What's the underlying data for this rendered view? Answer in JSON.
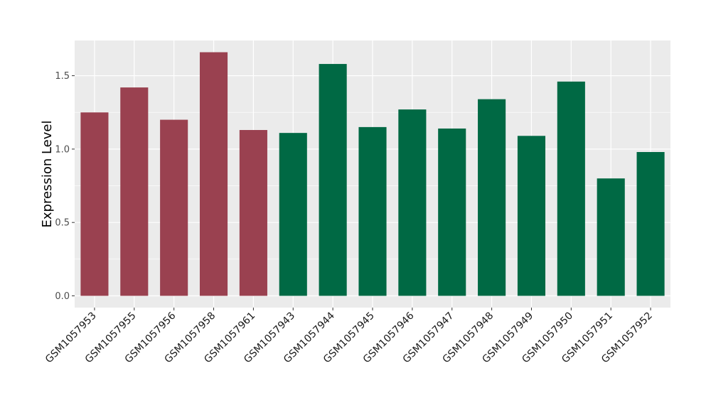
{
  "chart_data": {
    "type": "bar",
    "title": "",
    "xlabel": "",
    "ylabel": "Expression Level",
    "ylim": [
      -0.08,
      1.74
    ],
    "yticks": [
      0.0,
      0.5,
      1.0,
      1.5
    ],
    "ytick_labels": [
      "0.0",
      "0.5",
      "1.0",
      "1.5"
    ],
    "grid": true,
    "legend": "none",
    "categories": [
      "GSM1057953",
      "GSM1057955",
      "GSM1057956",
      "GSM1057958",
      "GSM1057961",
      "GSM1057943",
      "GSM1057944",
      "GSM1057945",
      "GSM1057946",
      "GSM1057947",
      "GSM1057948",
      "GSM1057949",
      "GSM1057950",
      "GSM1057951",
      "GSM1057952"
    ],
    "values": [
      1.25,
      1.42,
      1.2,
      1.66,
      1.13,
      1.11,
      1.58,
      1.15,
      1.27,
      1.14,
      1.34,
      1.09,
      1.46,
      0.8,
      0.98
    ],
    "bar_colors": [
      "#9a4150",
      "#9a4150",
      "#9a4150",
      "#9a4150",
      "#9a4150",
      "#006944",
      "#006944",
      "#006944",
      "#006944",
      "#006944",
      "#006944",
      "#006944",
      "#006944",
      "#006944",
      "#006944"
    ],
    "panel_background": "#ebebeb",
    "grid_color": "#ffffff"
  }
}
